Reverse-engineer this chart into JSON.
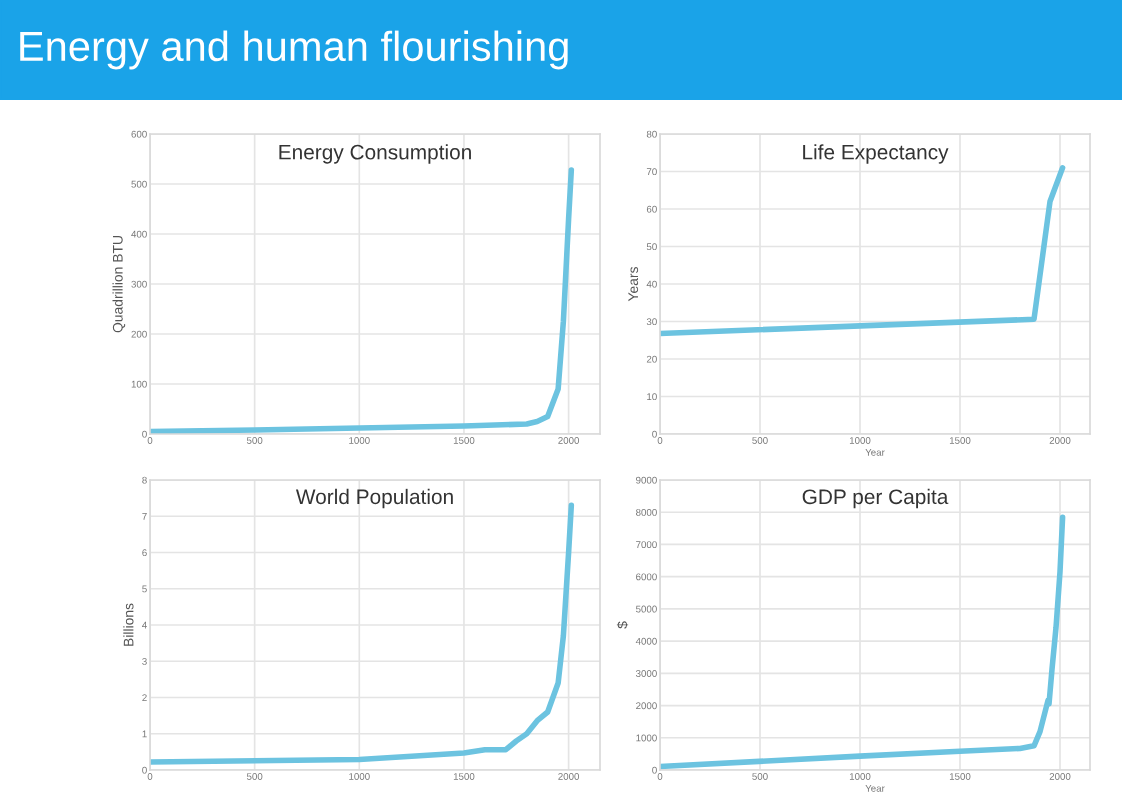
{
  "chart_data": [
    {
      "type": "other",
      "title": "Energy and human flourishing",
      "color": "#1aa3e8"
    },
    {
      "type": "line",
      "title": "Energy Consumption",
      "ylabel": "Quadrillion BTU",
      "x": [
        0,
        500,
        1000,
        1500,
        1800,
        1850,
        1900,
        1950,
        1975,
        2000,
        2013
      ],
      "series": [
        {
          "color": "#6cc3e0",
          "values": [
            5,
            8,
            12,
            16,
            20,
            25,
            35,
            90,
            225,
            430,
            528
          ]
        }
      ],
      "xlim": [
        0,
        2150
      ],
      "xticks": [
        0,
        500,
        1000,
        1500,
        2000
      ],
      "ylim": [
        0,
        600
      ],
      "yticks": [
        0,
        100,
        200,
        300,
        400,
        500,
        600
      ],
      "grid": true,
      "marker": "none",
      "line_style": "solid"
    },
    {
      "type": "line",
      "title": "Life Expectancy",
      "xlabel": "Year",
      "ylabel": "Years",
      "x": [
        0,
        1870,
        1950,
        2013
      ],
      "series": [
        {
          "color": "#6cc3e0",
          "values": [
            26.8,
            30.6,
            62,
            71
          ]
        }
      ],
      "xlim": [
        0,
        2150
      ],
      "xticks": [
        0,
        500,
        1000,
        1500,
        2000
      ],
      "ylim": [
        0,
        80
      ],
      "yticks": [
        0,
        10,
        20,
        30,
        40,
        50,
        60,
        70,
        80
      ],
      "grid": true,
      "marker": "none",
      "line_style": "solid"
    },
    {
      "type": "line",
      "title": "World Population",
      "ylabel": "Billions",
      "x": [
        0,
        1000,
        1500,
        1600,
        1700,
        1750,
        1800,
        1850,
        1900,
        1950,
        1975,
        2000,
        2013
      ],
      "series": [
        {
          "color": "#6cc3e0",
          "values": [
            0.22,
            0.29,
            0.47,
            0.56,
            0.56,
            0.8,
            1.0,
            1.36,
            1.6,
            2.4,
            3.7,
            6.0,
            7.3
          ]
        }
      ],
      "xlim": [
        0,
        2150
      ],
      "xticks": [
        0,
        500,
        1000,
        1500,
        2000
      ],
      "ylim": [
        0,
        8
      ],
      "yticks": [
        0,
        1,
        2,
        3,
        4,
        5,
        6,
        7,
        8
      ],
      "grid": true,
      "marker": "none",
      "line_style": "solid"
    },
    {
      "type": "line",
      "title": "GDP per Capita",
      "xlabel": "Year",
      "ylabel": "$",
      "x": [
        0,
        1000,
        1500,
        1800,
        1870,
        1900,
        1940,
        1945,
        1960,
        1980,
        2000,
        2013
      ],
      "series": [
        {
          "color": "#6cc3e0",
          "values": [
            110,
            430,
            580,
            670,
            750,
            1190,
            2160,
            2050,
            3130,
            4420,
            6150,
            7840
          ]
        }
      ],
      "xlim": [
        0,
        2150
      ],
      "xticks": [
        0,
        500,
        1000,
        1500,
        2000
      ],
      "ylim": [
        0,
        9000
      ],
      "yticks": [
        0,
        1000,
        2000,
        3000,
        4000,
        5000,
        6000,
        7000,
        8000,
        9000
      ],
      "grid": true,
      "marker": "none",
      "line_style": "solid"
    }
  ]
}
